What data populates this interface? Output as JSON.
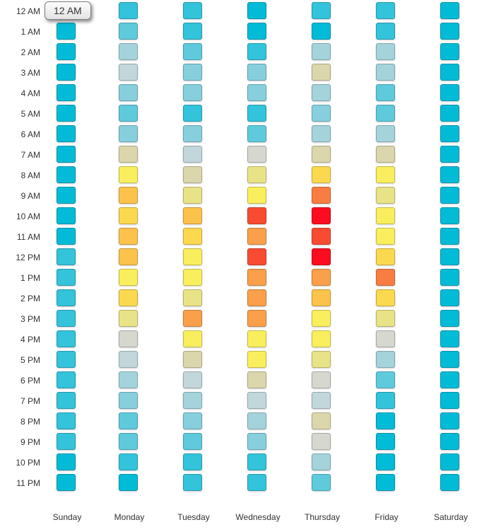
{
  "tooltip": {
    "label": "12 AM"
  },
  "colors": {
    "background": "#ffffff",
    "label_text": "#333333"
  },
  "chart_data": {
    "type": "heatmap",
    "title": "",
    "xlabel": "",
    "ylabel": "",
    "grid": false,
    "legend_position": "none",
    "days": [
      "Sunday",
      "Monday",
      "Tuesday",
      "Wednesday",
      "Thursday",
      "Friday",
      "Saturday"
    ],
    "hours": [
      "12 AM",
      "1 AM",
      "2 AM",
      "3 AM",
      "4 AM",
      "5 AM",
      "6 AM",
      "7 AM",
      "8 AM",
      "9 AM",
      "10 AM",
      "11 AM",
      "12 PM",
      "1 PM",
      "2 PM",
      "3 PM",
      "4 PM",
      "5 PM",
      "6 PM",
      "7 PM",
      "8 PM",
      "9 PM",
      "10 PM",
      "11 PM"
    ],
    "palette": [
      "#02BBD7",
      "#33C3DA",
      "#5FCADC",
      "#87CFDC",
      "#A4D3DC",
      "#C2D7DB",
      "#D6D8CF",
      "#DCD6AC",
      "#E9E387",
      "#F9EE5D",
      "#FBD94F",
      "#FBC24C",
      "#FAA04B",
      "#F97D42",
      "#F84B32",
      "#FB0D1F"
    ],
    "palette_scale": "0 = coolest (cyan) to 15 = hottest (red)",
    "series": [
      {
        "name": "Sunday",
        "levels": [
          0,
          0,
          0,
          0,
          0,
          0,
          0,
          0,
          0,
          0,
          0,
          0,
          1,
          1,
          1,
          1,
          1,
          1,
          1,
          1,
          1,
          1,
          0,
          0
        ]
      },
      {
        "name": "Monday",
        "levels": [
          1,
          2,
          4,
          5,
          3,
          2,
          3,
          7,
          9,
          11,
          10,
          11,
          11,
          9,
          10,
          8,
          6,
          5,
          4,
          3,
          2,
          2,
          1,
          0
        ]
      },
      {
        "name": "Tuesday",
        "levels": [
          1,
          1,
          2,
          3,
          3,
          1,
          3,
          5,
          7,
          8,
          11,
          10,
          9,
          9,
          8,
          12,
          9,
          7,
          5,
          4,
          3,
          2,
          1,
          1
        ]
      },
      {
        "name": "Wednesday",
        "levels": [
          0,
          0,
          1,
          3,
          3,
          1,
          2,
          6,
          8,
          9,
          14,
          12,
          14,
          12,
          12,
          12,
          9,
          9,
          7,
          5,
          4,
          3,
          1,
          1
        ]
      },
      {
        "name": "Thursday",
        "levels": [
          1,
          0,
          4,
          7,
          4,
          3,
          4,
          7,
          10,
          13,
          15,
          14,
          15,
          12,
          11,
          9,
          9,
          8,
          6,
          5,
          7,
          6,
          4,
          2
        ]
      },
      {
        "name": "Friday",
        "levels": [
          1,
          1,
          4,
          4,
          2,
          2,
          4,
          7,
          9,
          8,
          9,
          9,
          10,
          13,
          10,
          8,
          6,
          4,
          2,
          1,
          0,
          0,
          0,
          0
        ]
      },
      {
        "name": "Saturday",
        "levels": [
          0,
          0,
          0,
          0,
          0,
          0,
          0,
          0,
          0,
          0,
          0,
          0,
          0,
          0,
          0,
          0,
          0,
          0,
          0,
          0,
          0,
          0,
          0,
          0
        ]
      }
    ]
  }
}
